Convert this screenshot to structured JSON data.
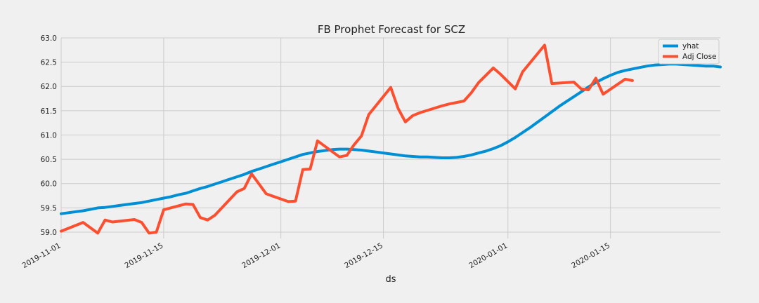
{
  "chart_data": {
    "type": "line",
    "title": "FB Prophet Forecast for SCZ",
    "xlabel": "ds",
    "ylabel": "",
    "grid": true,
    "legend_position": "top-right",
    "xlim": [
      "2019-11-01",
      "2020-01-30"
    ],
    "ylim": [
      58.87,
      63.0
    ],
    "y_ticks": [
      "59.0",
      "59.5",
      "60.0",
      "60.5",
      "61.0",
      "61.5",
      "62.0",
      "62.5",
      "63.0"
    ],
    "x_ticks": [
      {
        "date": "2019-11-01",
        "label": "2019-11-01"
      },
      {
        "date": "2019-11-15",
        "label": "2019-11-15"
      },
      {
        "date": "2019-12-01",
        "label": "2019-12-01"
      },
      {
        "date": "2019-12-15",
        "label": "2019-12-15"
      },
      {
        "date": "2020-01-01",
        "label": "2020-01-01"
      },
      {
        "date": "2020-01-15",
        "label": "2020-01-15"
      }
    ],
    "series": [
      {
        "name": "yhat",
        "color": "#008fd5",
        "points": [
          [
            "2019-11-01",
            59.38
          ],
          [
            "2019-11-02",
            59.4
          ],
          [
            "2019-11-03",
            59.42
          ],
          [
            "2019-11-04",
            59.44
          ],
          [
            "2019-11-05",
            59.47
          ],
          [
            "2019-11-06",
            59.5
          ],
          [
            "2019-11-07",
            59.51
          ],
          [
            "2019-11-08",
            59.53
          ],
          [
            "2019-11-09",
            59.55
          ],
          [
            "2019-11-10",
            59.57
          ],
          [
            "2019-11-11",
            59.59
          ],
          [
            "2019-11-12",
            59.61
          ],
          [
            "2019-11-13",
            59.64
          ],
          [
            "2019-11-14",
            59.67
          ],
          [
            "2019-11-15",
            59.7
          ],
          [
            "2019-11-16",
            59.73
          ],
          [
            "2019-11-17",
            59.77
          ],
          [
            "2019-11-18",
            59.8
          ],
          [
            "2019-11-19",
            59.85
          ],
          [
            "2019-11-20",
            59.9
          ],
          [
            "2019-11-21",
            59.94
          ],
          [
            "2019-11-22",
            59.99
          ],
          [
            "2019-11-23",
            60.04
          ],
          [
            "2019-11-24",
            60.09
          ],
          [
            "2019-11-25",
            60.14
          ],
          [
            "2019-11-26",
            60.19
          ],
          [
            "2019-11-27",
            60.25
          ],
          [
            "2019-11-28",
            60.3
          ],
          [
            "2019-11-29",
            60.35
          ],
          [
            "2019-11-30",
            60.4
          ],
          [
            "2019-12-01",
            60.45
          ],
          [
            "2019-12-02",
            60.5
          ],
          [
            "2019-12-03",
            60.55
          ],
          [
            "2019-12-04",
            60.6
          ],
          [
            "2019-12-05",
            60.63
          ],
          [
            "2019-12-06",
            60.66
          ],
          [
            "2019-12-07",
            60.68
          ],
          [
            "2019-12-08",
            60.7
          ],
          [
            "2019-12-09",
            60.71
          ],
          [
            "2019-12-10",
            60.71
          ],
          [
            "2019-12-11",
            60.7
          ],
          [
            "2019-12-12",
            60.69
          ],
          [
            "2019-12-13",
            60.67
          ],
          [
            "2019-12-14",
            60.65
          ],
          [
            "2019-12-15",
            60.63
          ],
          [
            "2019-12-16",
            60.61
          ],
          [
            "2019-12-17",
            60.59
          ],
          [
            "2019-12-18",
            60.57
          ],
          [
            "2019-12-19",
            60.56
          ],
          [
            "2019-12-20",
            60.55
          ],
          [
            "2019-12-21",
            60.55
          ],
          [
            "2019-12-22",
            60.54
          ],
          [
            "2019-12-23",
            60.53
          ],
          [
            "2019-12-24",
            60.53
          ],
          [
            "2019-12-25",
            60.54
          ],
          [
            "2019-12-26",
            60.56
          ],
          [
            "2019-12-27",
            60.59
          ],
          [
            "2019-12-28",
            60.63
          ],
          [
            "2019-12-29",
            60.67
          ],
          [
            "2019-12-30",
            60.72
          ],
          [
            "2019-12-31",
            60.78
          ],
          [
            "2020-01-01",
            60.86
          ],
          [
            "2020-01-02",
            60.95
          ],
          [
            "2020-01-03",
            61.05
          ],
          [
            "2020-01-04",
            61.15
          ],
          [
            "2020-01-05",
            61.26
          ],
          [
            "2020-01-06",
            61.37
          ],
          [
            "2020-01-07",
            61.48
          ],
          [
            "2020-01-08",
            61.59
          ],
          [
            "2020-01-09",
            61.69
          ],
          [
            "2020-01-10",
            61.79
          ],
          [
            "2020-01-11",
            61.89
          ],
          [
            "2020-01-12",
            61.99
          ],
          [
            "2020-01-13",
            62.08
          ],
          [
            "2020-01-14",
            62.16
          ],
          [
            "2020-01-15",
            62.23
          ],
          [
            "2020-01-16",
            62.29
          ],
          [
            "2020-01-17",
            62.33
          ],
          [
            "2020-01-18",
            62.36
          ],
          [
            "2020-01-19",
            62.39
          ],
          [
            "2020-01-20",
            62.42
          ],
          [
            "2020-01-21",
            62.44
          ],
          [
            "2020-01-22",
            62.45
          ],
          [
            "2020-01-23",
            62.46
          ],
          [
            "2020-01-24",
            62.46
          ],
          [
            "2020-01-25",
            62.45
          ],
          [
            "2020-01-26",
            62.44
          ],
          [
            "2020-01-27",
            62.43
          ],
          [
            "2020-01-28",
            62.42
          ],
          [
            "2020-01-29",
            62.42
          ],
          [
            "2020-01-30",
            62.4
          ]
        ]
      },
      {
        "name": "Adj Close",
        "color": "#fc4f30",
        "points": [
          [
            "2019-11-01",
            59.02
          ],
          [
            "2019-11-04",
            59.2
          ],
          [
            "2019-11-06",
            58.98
          ],
          [
            "2019-11-07",
            59.25
          ],
          [
            "2019-11-08",
            59.21
          ],
          [
            "2019-11-11",
            59.26
          ],
          [
            "2019-11-12",
            59.2
          ],
          [
            "2019-11-13",
            58.98
          ],
          [
            "2019-11-14",
            59.0
          ],
          [
            "2019-11-15",
            59.46
          ],
          [
            "2019-11-18",
            59.58
          ],
          [
            "2019-11-19",
            59.57
          ],
          [
            "2019-11-20",
            59.3
          ],
          [
            "2019-11-21",
            59.25
          ],
          [
            "2019-11-22",
            59.35
          ],
          [
            "2019-11-25",
            59.83
          ],
          [
            "2019-11-26",
            59.9
          ],
          [
            "2019-11-27",
            60.2
          ],
          [
            "2019-11-29",
            59.79
          ],
          [
            "2019-12-02",
            59.63
          ],
          [
            "2019-12-03",
            59.64
          ],
          [
            "2019-12-04",
            60.29
          ],
          [
            "2019-12-05",
            60.3
          ],
          [
            "2019-12-06",
            60.88
          ],
          [
            "2019-12-09",
            60.55
          ],
          [
            "2019-12-10",
            60.58
          ],
          [
            "2019-12-11",
            60.8
          ],
          [
            "2019-12-12",
            60.98
          ],
          [
            "2019-12-13",
            61.42
          ],
          [
            "2019-12-16",
            61.98
          ],
          [
            "2019-12-17",
            61.55
          ],
          [
            "2019-12-18",
            61.27
          ],
          [
            "2019-12-19",
            61.4
          ],
          [
            "2019-12-20",
            61.46
          ],
          [
            "2019-12-23",
            61.6
          ],
          [
            "2019-12-24",
            61.64
          ],
          [
            "2019-12-26",
            61.7
          ],
          [
            "2019-12-27",
            61.87
          ],
          [
            "2019-12-28",
            62.08
          ],
          [
            "2019-12-30",
            62.38
          ],
          [
            "2019-12-31",
            62.25
          ],
          [
            "2020-01-02",
            61.95
          ],
          [
            "2020-01-03",
            62.3
          ],
          [
            "2020-01-06",
            62.85
          ],
          [
            "2020-01-07",
            62.06
          ],
          [
            "2020-01-10",
            62.09
          ],
          [
            "2020-01-11",
            61.95
          ],
          [
            "2020-01-12",
            61.93
          ],
          [
            "2020-01-13",
            62.17
          ],
          [
            "2020-01-14",
            61.84
          ],
          [
            "2020-01-17",
            62.15
          ],
          [
            "2020-01-18",
            62.12
          ]
        ]
      }
    ]
  }
}
